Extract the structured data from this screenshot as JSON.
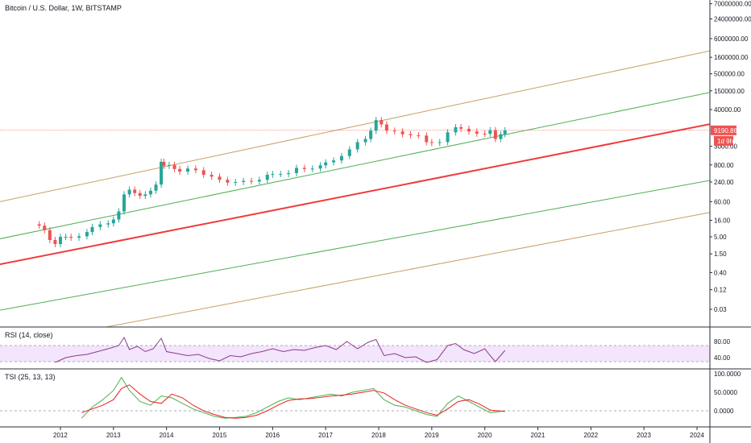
{
  "header": {
    "title": "Bitcoin / U.S. Dollar, 1W, BITSTAMP"
  },
  "colors": {
    "outer_channel": "#c8a063",
    "inner_channel": "#4caf50",
    "mid_line": "#ef3b3b",
    "up_candle": "#26a69a",
    "down_candle": "#ef5350",
    "rsi_line": "#8e3a8e",
    "rsi_band": "#f3e5fb",
    "tsi_line": "#e91e1e",
    "tsi_signal": "#4caf50",
    "price_line": "#ef5350",
    "badge": "#ef5350"
  },
  "chart_data": [
    {
      "type": "line",
      "pane": "price",
      "scale": "log",
      "price_axis_labels": [
        "70000000.00",
        "24000000.00",
        "6000000.00",
        "1600000.00",
        "500000.00",
        "150000.00",
        "40000.00",
        "9190.86",
        "3000.00",
        "800.00",
        "240.00",
        "60.00",
        "16.00",
        "5.00",
        "1.50",
        "0.40",
        "0.12",
        "0.03"
      ],
      "x_axis_labels": [
        "2012",
        "2013",
        "2014",
        "2015",
        "2016",
        "2017",
        "2018",
        "2019",
        "2020",
        "2021",
        "2022",
        "2023",
        "2024"
      ],
      "last_price": {
        "value": "9190.86",
        "countdown": "1d 9h"
      },
      "series": [
        {
          "kind": "candles",
          "x": [
            2011.6,
            2011.7,
            2011.8,
            2011.9,
            2012.0,
            2012.1,
            2012.2,
            2012.35,
            2012.5,
            2012.6,
            2012.75,
            2012.9,
            2013.0,
            2013.1,
            2013.2,
            2013.3,
            2013.4,
            2013.5,
            2013.6,
            2013.7,
            2013.8,
            2013.9,
            2013.95,
            2014.05,
            2014.15,
            2014.25,
            2014.4,
            2014.55,
            2014.7,
            2014.85,
            2015.0,
            2015.15,
            2015.3,
            2015.45,
            2015.6,
            2015.75,
            2015.9,
            2016.0,
            2016.15,
            2016.3,
            2016.45,
            2016.6,
            2016.75,
            2016.9,
            2017.0,
            2017.15,
            2017.3,
            2017.45,
            2017.6,
            2017.75,
            2017.85,
            2017.95,
            2018.05,
            2018.15,
            2018.3,
            2018.45,
            2018.6,
            2018.75,
            2018.9,
            2019.0,
            2019.15,
            2019.3,
            2019.45,
            2019.55,
            2019.7,
            2019.85,
            2020.0,
            2020.1,
            2020.2,
            2020.3,
            2020.38
          ],
          "close": [
            11,
            8,
            4,
            3,
            5,
            5,
            4.7,
            5.2,
            7,
            10,
            12,
            13,
            17,
            30,
            100,
            140,
            110,
            90,
            100,
            130,
            200,
            1000,
            750,
            800,
            600,
            500,
            620,
            550,
            400,
            350,
            280,
            230,
            240,
            260,
            250,
            280,
            400,
            420,
            420,
            450,
            650,
            600,
            620,
            780,
            960,
            1100,
            1500,
            2400,
            4000,
            5000,
            9000,
            19000,
            14000,
            9000,
            8500,
            7000,
            6500,
            6400,
            4000,
            3800,
            4000,
            8000,
            11500,
            10300,
            8500,
            7300,
            7200,
            9300,
            5000,
            7000,
            9190
          ]
        },
        {
          "kind": "line",
          "name": "",
          "points": [
            [
              2010.5,
              45
            ],
            [
              2025.0,
              4600000
            ]
          ]
        },
        {
          "kind": "line",
          "name": "",
          "points": [
            [
              2010.5,
              3.3
            ],
            [
              2025.0,
              240000
            ]
          ]
        },
        {
          "kind": "line",
          "name": "",
          "points": [
            [
              2010.5,
              0.55
            ],
            [
              2025.0,
              25000
            ]
          ]
        },
        {
          "kind": "line",
          "name": "",
          "points": [
            [
              2010.5,
              0.022
            ],
            [
              2025.0,
              450
            ]
          ]
        },
        {
          "kind": "line",
          "name": "",
          "points": [
            [
              2010.5,
              0.0016
            ],
            [
              2025.0,
              48
            ]
          ]
        }
      ]
    },
    {
      "type": "line",
      "pane": "rsi",
      "title": "RSI (14, close)",
      "axis_labels": [
        "80.00",
        "40.00"
      ],
      "band": [
        30,
        70
      ],
      "x": [
        2011.9,
        2012.1,
        2012.3,
        2012.5,
        2012.7,
        2012.9,
        2013.1,
        2013.2,
        2013.3,
        2013.45,
        2013.6,
        2013.75,
        2013.9,
        2014.0,
        2014.2,
        2014.4,
        2014.6,
        2014.8,
        2015.0,
        2015.2,
        2015.4,
        2015.6,
        2015.8,
        2016.0,
        2016.2,
        2016.4,
        2016.6,
        2016.8,
        2017.0,
        2017.2,
        2017.4,
        2017.6,
        2017.8,
        2017.95,
        2018.1,
        2018.3,
        2018.5,
        2018.7,
        2018.9,
        2019.1,
        2019.3,
        2019.45,
        2019.6,
        2019.8,
        2020.0,
        2020.1,
        2020.2,
        2020.38
      ],
      "values": [
        28,
        40,
        45,
        48,
        55,
        62,
        70,
        90,
        60,
        68,
        55,
        62,
        88,
        55,
        50,
        45,
        48,
        38,
        32,
        45,
        42,
        50,
        55,
        62,
        55,
        60,
        58,
        65,
        70,
        60,
        80,
        62,
        78,
        85,
        45,
        50,
        40,
        42,
        28,
        35,
        70,
        75,
        60,
        50,
        62,
        45,
        30,
        58
      ]
    },
    {
      "type": "line",
      "pane": "tsi",
      "title": "TSI (25, 13, 13)",
      "axis_labels": [
        "100.0000",
        "50.0000",
        "0.0000"
      ],
      "x": [
        2012.4,
        2012.6,
        2012.8,
        2013.0,
        2013.15,
        2013.3,
        2013.5,
        2013.7,
        2013.9,
        2014.1,
        2014.3,
        2014.5,
        2014.7,
        2014.9,
        2015.1,
        2015.3,
        2015.5,
        2015.7,
        2015.9,
        2016.1,
        2016.3,
        2016.5,
        2016.7,
        2016.9,
        2017.1,
        2017.3,
        2017.5,
        2017.7,
        2017.9,
        2018.1,
        2018.3,
        2018.5,
        2018.7,
        2018.9,
        2019.1,
        2019.3,
        2019.5,
        2019.7,
        2019.9,
        2020.1,
        2020.38
      ],
      "series": [
        {
          "name": "",
          "values": [
            -20,
            10,
            30,
            55,
            90,
            55,
            25,
            15,
            40,
            35,
            20,
            5,
            -5,
            -15,
            -20,
            -18,
            -15,
            -5,
            10,
            25,
            35,
            30,
            35,
            40,
            45,
            40,
            50,
            55,
            60,
            30,
            15,
            10,
            0,
            -10,
            -15,
            20,
            40,
            25,
            10,
            -5,
            0
          ]
        },
        {
          "name": "",
          "values": [
            -5,
            5,
            15,
            30,
            60,
            70,
            45,
            25,
            20,
            45,
            35,
            15,
            0,
            -10,
            -18,
            -20,
            -18,
            -12,
            0,
            15,
            28,
            32,
            33,
            36,
            40,
            42,
            45,
            50,
            55,
            48,
            30,
            15,
            5,
            -5,
            -12,
            5,
            25,
            30,
            18,
            2,
            -2
          ]
        }
      ]
    }
  ]
}
